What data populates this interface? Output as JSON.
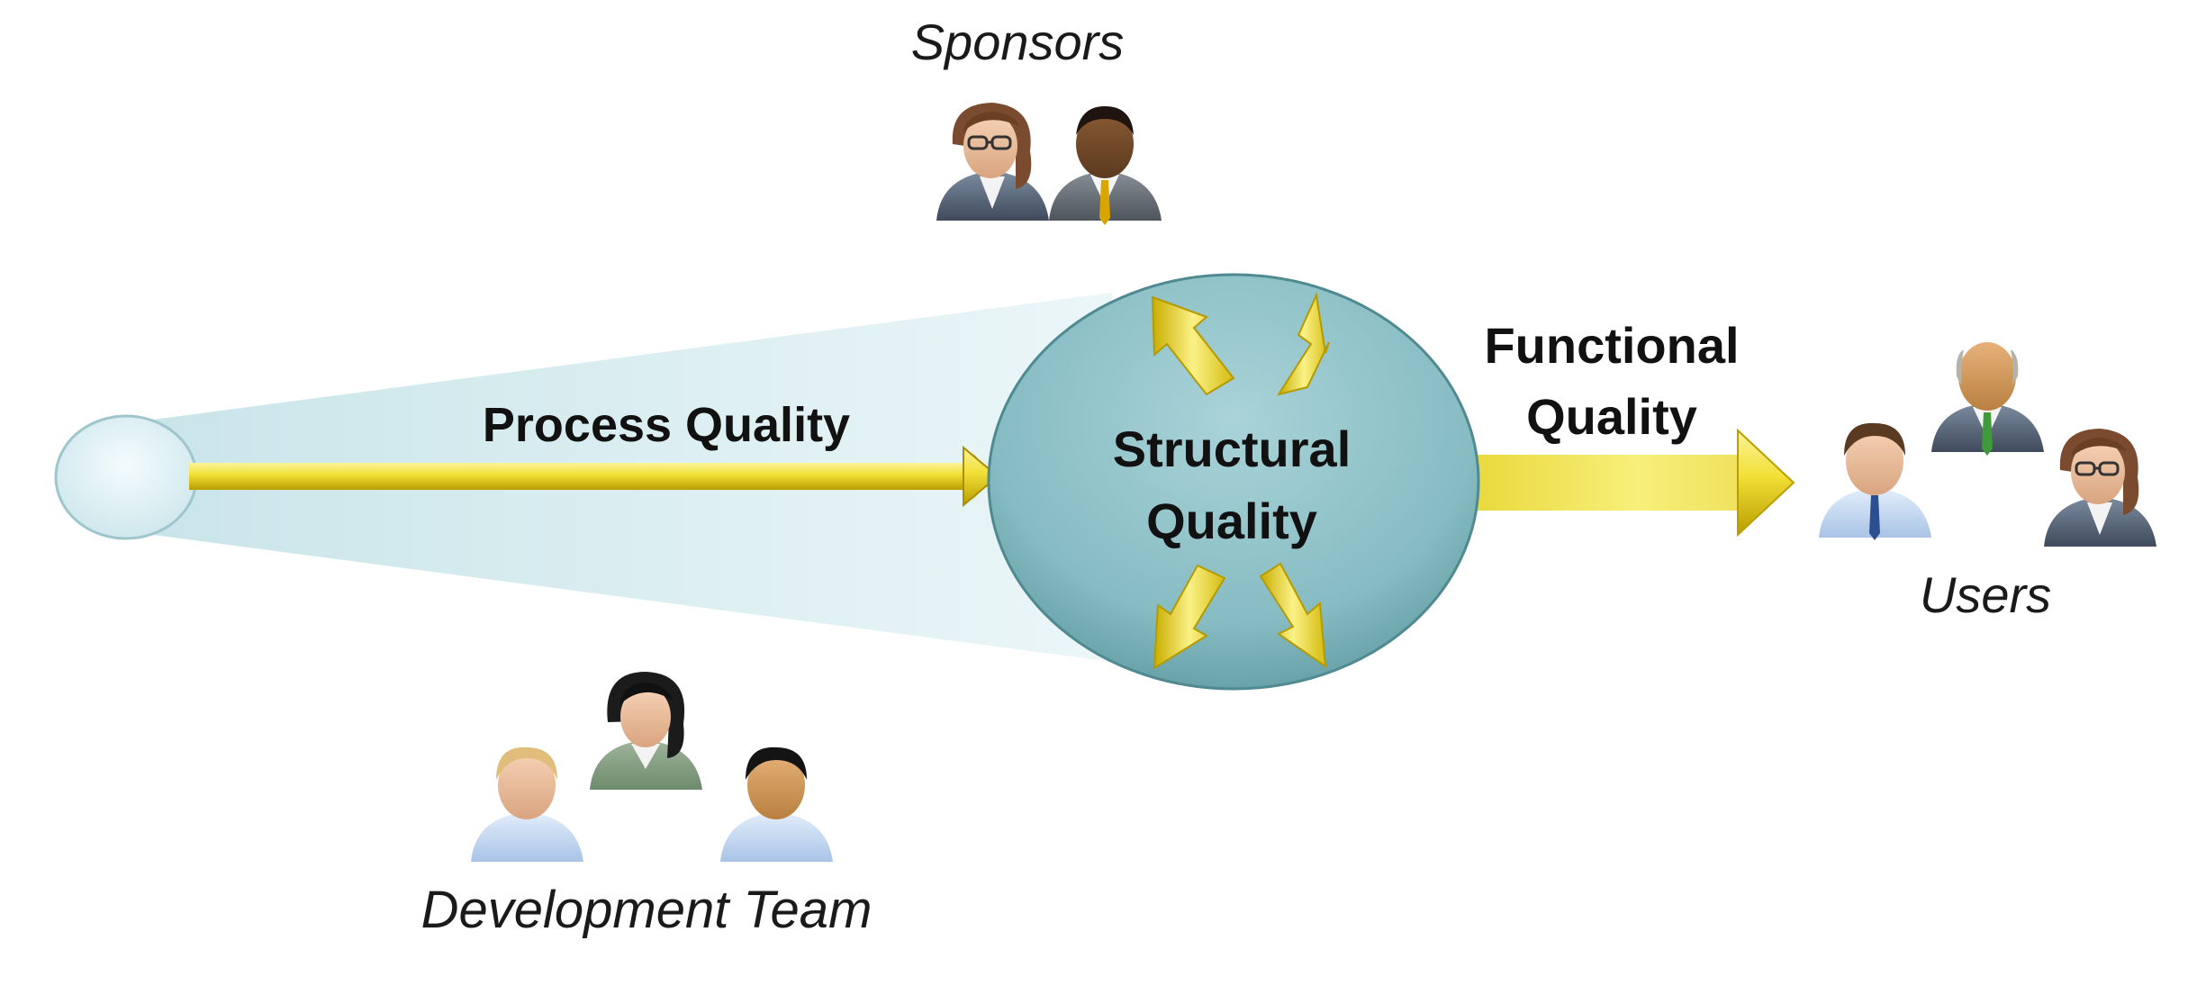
{
  "diagram": {
    "labels": {
      "sponsors": "Sponsors",
      "process_quality": "Process Quality",
      "structural_line1": "Structural",
      "structural_line2": "Quality",
      "functional_line1": "Functional",
      "functional_line2": "Quality",
      "users": "Users",
      "development_team": "Development Team"
    },
    "groups": {
      "sponsors": [
        "woman-glasses-icon",
        "man-dark-icon"
      ],
      "users": [
        "man-blue-tie-icon",
        "older-man-green-tie-icon",
        "woman-glasses-icon"
      ],
      "development_team": [
        "man-blond-icon",
        "woman-dark-hair-icon",
        "man-dark-hair-icon"
      ]
    },
    "colors": {
      "arrow_yellow": "#F2E23A",
      "arrow_gold": "#C8B000",
      "circle_teal": "#8FC3C9",
      "start_circle": "#E6F5F8",
      "beam": "#D9ECEF"
    }
  }
}
